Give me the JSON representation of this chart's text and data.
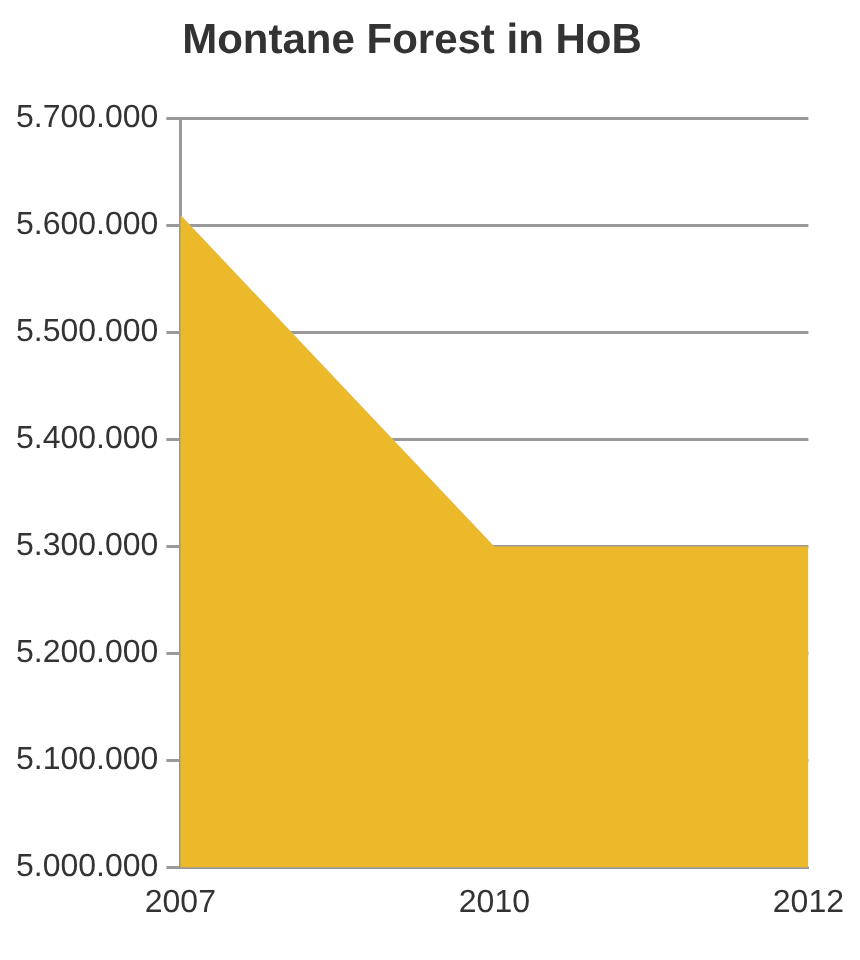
{
  "chart_data": {
    "type": "area",
    "title": "Montane Forest in HoB",
    "categories": [
      "2007",
      "2010",
      "2012"
    ],
    "series": [
      {
        "color": "#ecb92b",
        "values": [
          5610000,
          5300000,
          5300000
        ]
      }
    ],
    "ylim": [
      5000000,
      5700000
    ],
    "yticks": [
      {
        "value": 5000000,
        "label": "5.000.000"
      },
      {
        "value": 5100000,
        "label": "5.100.000"
      },
      {
        "value": 5200000,
        "label": "5.200.000"
      },
      {
        "value": 5300000,
        "label": "5.300.000"
      },
      {
        "value": 5400000,
        "label": "5.400.000"
      },
      {
        "value": 5500000,
        "label": "5.500.000"
      },
      {
        "value": 5600000,
        "label": "5.600.000"
      },
      {
        "value": 5700000,
        "label": "5.700.000"
      }
    ],
    "grid": "y",
    "legend": false
  }
}
